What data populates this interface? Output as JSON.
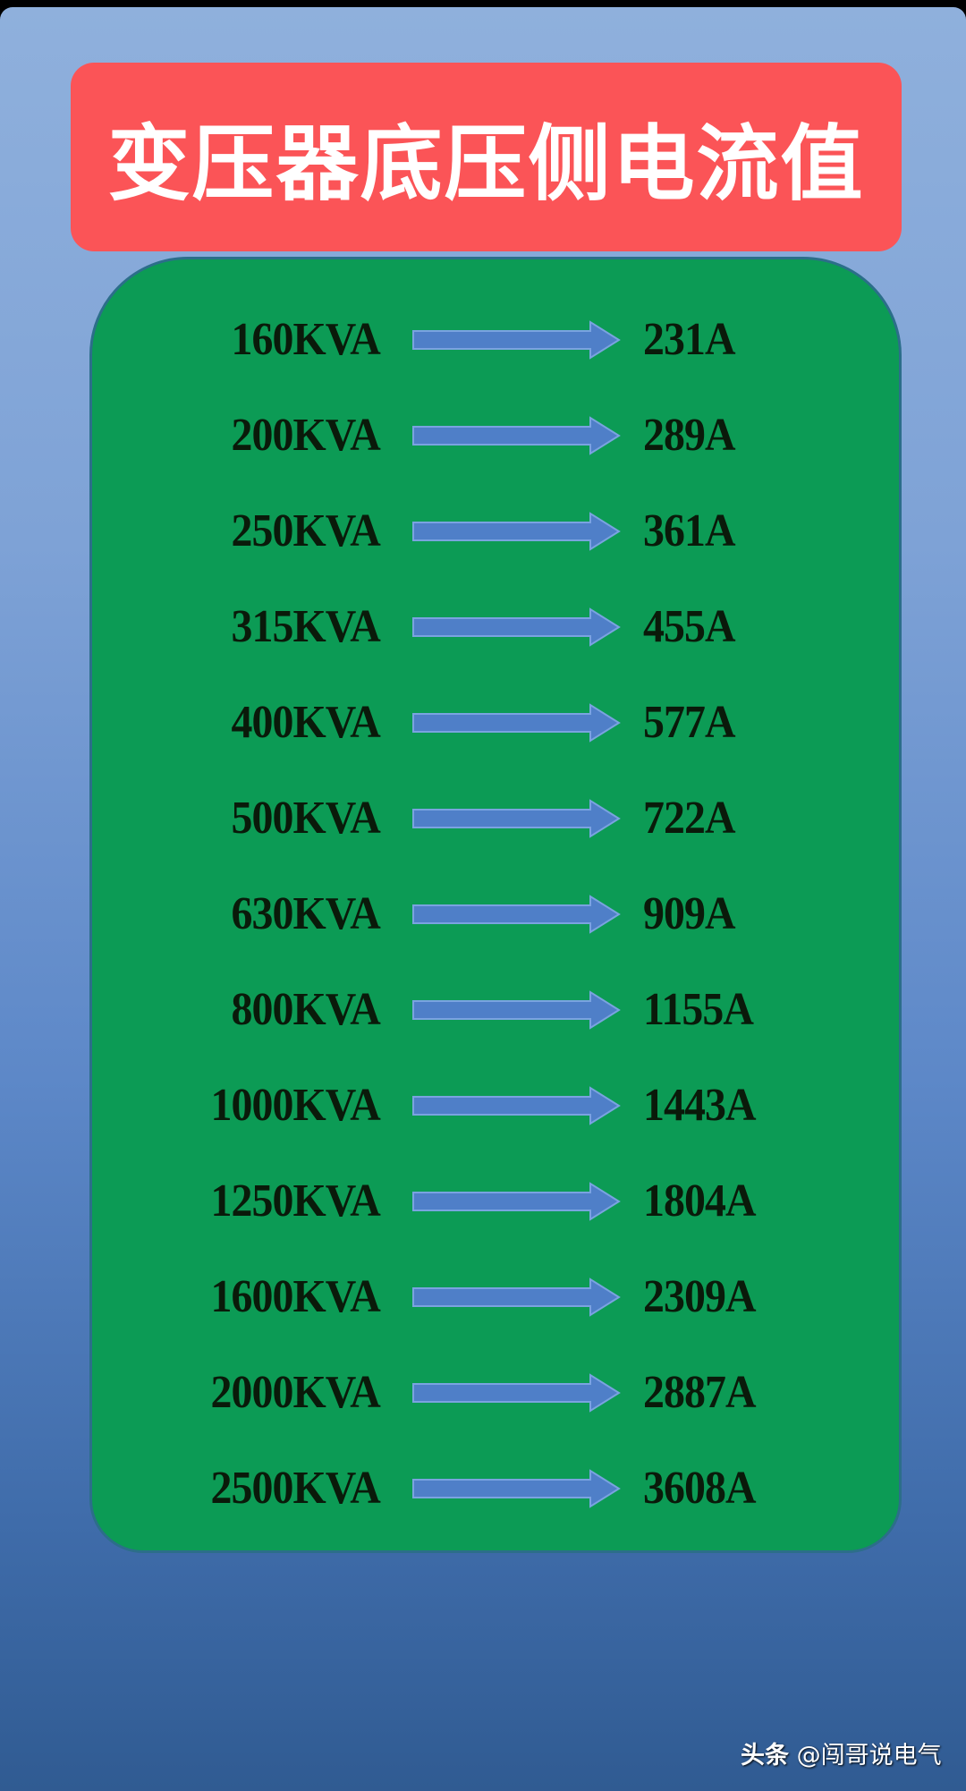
{
  "title": "变压器底压侧电流值",
  "colors": {
    "title_bg": "#fb5457",
    "panel_bg": "#0c9b55",
    "arrow": "#4f7fc8"
  },
  "rows": [
    {
      "capacity": "160KVA",
      "current": "231A"
    },
    {
      "capacity": "200KVA",
      "current": "289A"
    },
    {
      "capacity": "250KVA",
      "current": "361A"
    },
    {
      "capacity": "315KVA",
      "current": "455A"
    },
    {
      "capacity": "400KVA",
      "current": "577A"
    },
    {
      "capacity": "500KVA",
      "current": "722A"
    },
    {
      "capacity": "630KVA",
      "current": "909A"
    },
    {
      "capacity": "800KVA",
      "current": "1155A"
    },
    {
      "capacity": "1000KVA",
      "current": "1443A"
    },
    {
      "capacity": "1250KVA",
      "current": "1804A"
    },
    {
      "capacity": "1600KVA",
      "current": "2309A"
    },
    {
      "capacity": "2000KVA",
      "current": "2887A"
    },
    {
      "capacity": "2500KVA",
      "current": "3608A"
    }
  ],
  "watermark": {
    "brand": "头条",
    "handle": "@闯哥说电气"
  }
}
